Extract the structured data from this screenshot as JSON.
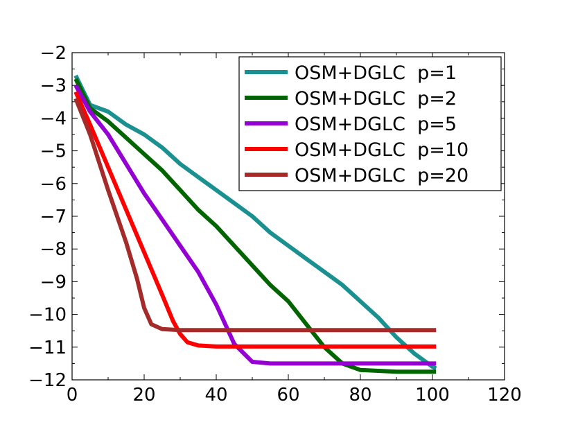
{
  "chart_data": {
    "type": "line",
    "title": "",
    "xlabel": "",
    "ylabel": "",
    "xlim": [
      0,
      120
    ],
    "ylim": [
      -12,
      -2
    ],
    "xticks": [
      0,
      20,
      40,
      60,
      80,
      100,
      120
    ],
    "yticks": [
      -12,
      -11,
      -10,
      -9,
      -8,
      -7,
      -6,
      -5,
      -4,
      -3,
      -2
    ],
    "xtick_labels": [
      "0",
      "20",
      "40",
      "60",
      "80",
      "100",
      "120"
    ],
    "ytick_labels": [
      "−12",
      "−11",
      "−10",
      "−9",
      "−8",
      "−7",
      "−6",
      "−5",
      "−4",
      "−3",
      "−2"
    ],
    "grid": false,
    "legend_position": "top-right",
    "series": [
      {
        "name": "OSM+DGLC  p=1",
        "color": "#1a9090",
        "x": [
          1,
          5,
          10,
          15,
          20,
          25,
          30,
          35,
          40,
          45,
          50,
          55,
          60,
          65,
          70,
          75,
          80,
          85,
          90,
          95,
          100,
          101
        ],
        "y": [
          -2.7,
          -3.6,
          -3.8,
          -4.2,
          -4.5,
          -4.9,
          -5.4,
          -5.8,
          -6.2,
          -6.6,
          -7.0,
          -7.5,
          -7.9,
          -8.3,
          -8.7,
          -9.1,
          -9.6,
          -10.1,
          -10.7,
          -11.2,
          -11.6,
          -11.65
        ]
      },
      {
        "name": "OSM+DGLC  p=2",
        "color": "#006400",
        "x": [
          1,
          5,
          10,
          15,
          20,
          25,
          30,
          35,
          40,
          45,
          50,
          55,
          60,
          65,
          70,
          75,
          80,
          90,
          101
        ],
        "y": [
          -2.8,
          -3.7,
          -4.1,
          -4.6,
          -5.1,
          -5.6,
          -6.2,
          -6.8,
          -7.3,
          -7.9,
          -8.5,
          -9.1,
          -9.6,
          -10.3,
          -11.0,
          -11.5,
          -11.7,
          -11.75,
          -11.75
        ]
      },
      {
        "name": "OSM+DGLC  p=5",
        "color": "#9400d3",
        "x": [
          1,
          5,
          10,
          15,
          20,
          25,
          30,
          35,
          40,
          45,
          50,
          55,
          60,
          70,
          80,
          90,
          101
        ],
        "y": [
          -3.0,
          -3.8,
          -4.5,
          -5.4,
          -6.3,
          -7.1,
          -7.9,
          -8.7,
          -9.7,
          -10.9,
          -11.45,
          -11.5,
          -11.5,
          -11.5,
          -11.5,
          -11.5,
          -11.5
        ]
      },
      {
        "name": "OSM+DGLC  p=10",
        "color": "#ff0000",
        "x": [
          1,
          5,
          10,
          15,
          20,
          25,
          28,
          30,
          32,
          35,
          40,
          50,
          60,
          80,
          101
        ],
        "y": [
          -3.2,
          -4.2,
          -5.5,
          -6.8,
          -8.1,
          -9.4,
          -10.2,
          -10.6,
          -10.85,
          -10.95,
          -10.98,
          -10.98,
          -10.98,
          -10.98,
          -10.98
        ]
      },
      {
        "name": "OSM+DGLC  p=20",
        "color": "#a52a2a",
        "x": [
          1,
          5,
          10,
          15,
          18,
          20,
          22,
          25,
          30,
          40,
          60,
          80,
          101
        ],
        "y": [
          -3.4,
          -4.5,
          -6.2,
          -7.8,
          -8.9,
          -9.8,
          -10.3,
          -10.45,
          -10.48,
          -10.48,
          -10.48,
          -10.48,
          -10.48
        ]
      }
    ]
  }
}
